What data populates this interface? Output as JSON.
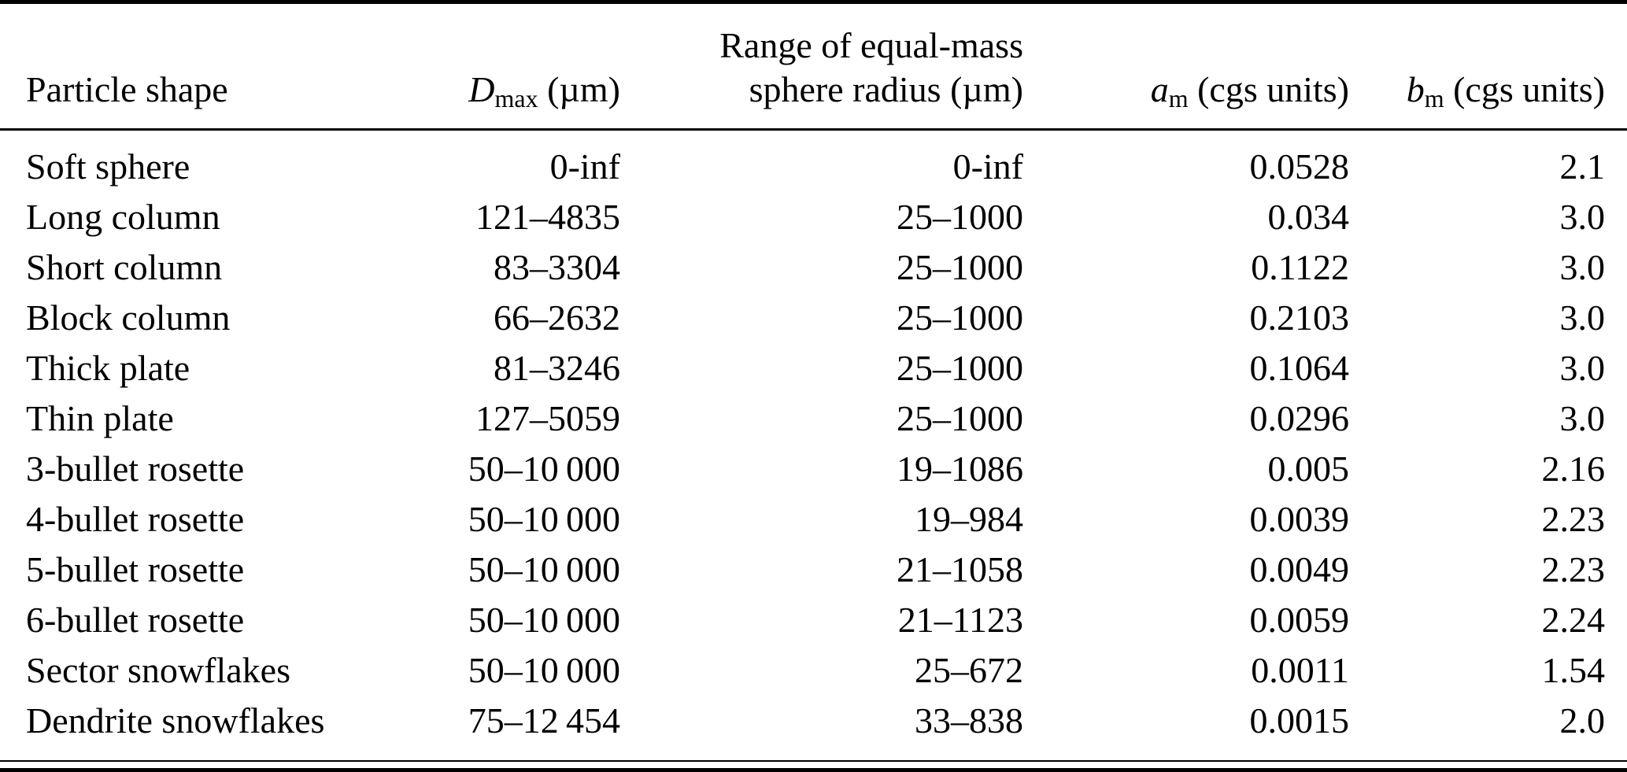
{
  "colors": {
    "background": "#ffffff",
    "text": "#000000",
    "rule": "#000000"
  },
  "table": {
    "header": {
      "range_line1": "Range of equal-mass",
      "particle_shape": "Particle shape",
      "dmax": {
        "symbol": "D",
        "sub": "max",
        "unit": " (µm)"
      },
      "range_line2": "sphere radius (µm)",
      "a_coeff": {
        "symbol": "a",
        "sub": "m",
        "unit": " (cgs units)"
      },
      "b_coeff": {
        "symbol": "b",
        "sub": "m",
        "unit": " (cgs units)"
      }
    },
    "rows": [
      {
        "shape": "Soft sphere",
        "dmax": "0-inf",
        "radius": "0-inf",
        "a": "0.0528",
        "b": "2.1"
      },
      {
        "shape": "Long column",
        "dmax": "121–4835",
        "radius": "25–1000",
        "a": "0.034",
        "b": "3.0"
      },
      {
        "shape": "Short column",
        "dmax": "83–3304",
        "radius": "25–1000",
        "a": "0.1122",
        "b": "3.0"
      },
      {
        "shape": "Block column",
        "dmax": "66–2632",
        "radius": "25–1000",
        "a": "0.2103",
        "b": "3.0"
      },
      {
        "shape": "Thick plate",
        "dmax": "81–3246",
        "radius": "25–1000",
        "a": "0.1064",
        "b": "3.0"
      },
      {
        "shape": "Thin plate",
        "dmax": "127–5059",
        "radius": "25–1000",
        "a": "0.0296",
        "b": "3.0"
      },
      {
        "shape": "3-bullet rosette",
        "dmax": "50–10 000",
        "radius": "19–1086",
        "a": "0.005",
        "b": "2.16"
      },
      {
        "shape": "4-bullet rosette",
        "dmax": "50–10 000",
        "radius": "19–984",
        "a": "0.0039",
        "b": "2.23"
      },
      {
        "shape": "5-bullet rosette",
        "dmax": "50–10 000",
        "radius": "21–1058",
        "a": "0.0049",
        "b": "2.23"
      },
      {
        "shape": "6-bullet rosette",
        "dmax": "50–10 000",
        "radius": "21–1123",
        "a": "0.0059",
        "b": "2.24"
      },
      {
        "shape": "Sector snowflakes",
        "dmax": "50–10 000",
        "radius": "25–672",
        "a": "0.0011",
        "b": "1.54"
      },
      {
        "shape": "Dendrite snowflakes",
        "dmax": "75–12 454",
        "radius": "33–838",
        "a": "0.0015",
        "b": "2.0"
      }
    ]
  }
}
